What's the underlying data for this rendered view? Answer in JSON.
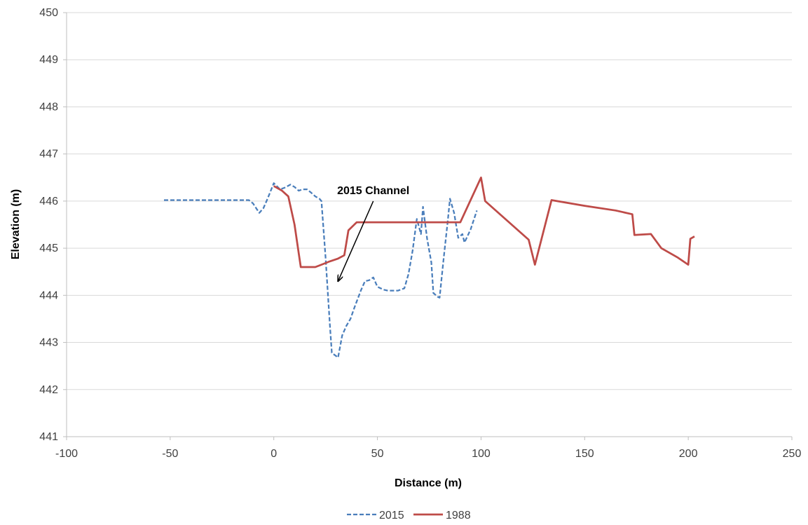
{
  "chart_data": {
    "type": "line",
    "title": "",
    "xlabel": "Distance (m)",
    "ylabel": "Elevation (m)",
    "xlim": [
      -100,
      250
    ],
    "ylim": [
      441,
      450
    ],
    "xticks": [
      -100,
      -50,
      0,
      50,
      100,
      150,
      200,
      250
    ],
    "yticks": [
      441,
      442,
      443,
      444,
      445,
      446,
      447,
      448,
      449,
      450
    ],
    "grid": "horizontal",
    "legend_position": "bottom",
    "annotations": [
      {
        "text": "2015 Channel",
        "arrow_from": [
          48,
          446.0
        ],
        "arrow_to": [
          31,
          444.3
        ]
      }
    ],
    "series": [
      {
        "name": "2015",
        "color": "#4a7ebb",
        "style": "dashed",
        "points": [
          [
            -53,
            446.02
          ],
          [
            -12,
            446.02
          ],
          [
            -10,
            445.95
          ],
          [
            -7,
            445.75
          ],
          [
            -5,
            445.85
          ],
          [
            -3,
            446.05
          ],
          [
            0,
            446.38
          ],
          [
            3,
            446.25
          ],
          [
            5,
            446.28
          ],
          [
            8,
            446.35
          ],
          [
            10,
            446.3
          ],
          [
            12,
            446.22
          ],
          [
            14,
            446.25
          ],
          [
            16,
            446.25
          ],
          [
            18,
            446.18
          ],
          [
            20,
            446.1
          ],
          [
            22,
            446.05
          ],
          [
            23,
            446.0
          ],
          [
            25,
            444.8
          ],
          [
            27,
            443.4
          ],
          [
            28,
            442.78
          ],
          [
            31,
            442.68
          ],
          [
            33,
            443.15
          ],
          [
            35,
            443.35
          ],
          [
            37,
            443.5
          ],
          [
            39,
            443.75
          ],
          [
            42,
            444.1
          ],
          [
            44,
            444.3
          ],
          [
            46,
            444.32
          ],
          [
            48,
            444.38
          ],
          [
            50,
            444.18
          ],
          [
            53,
            444.12
          ],
          [
            55,
            444.1
          ],
          [
            60,
            444.1
          ],
          [
            63,
            444.15
          ],
          [
            65,
            444.45
          ],
          [
            67,
            444.95
          ],
          [
            69,
            445.62
          ],
          [
            71,
            445.3
          ],
          [
            72,
            445.88
          ],
          [
            74,
            445.2
          ],
          [
            76,
            444.7
          ],
          [
            77,
            444.05
          ],
          [
            79,
            443.97
          ],
          [
            80,
            443.95
          ],
          [
            82,
            444.8
          ],
          [
            84,
            445.6
          ],
          [
            85,
            446.05
          ],
          [
            87,
            445.75
          ],
          [
            89,
            445.22
          ],
          [
            91,
            445.3
          ],
          [
            92,
            445.12
          ],
          [
            95,
            445.4
          ],
          [
            98,
            445.8
          ]
        ]
      },
      {
        "name": "1988",
        "color": "#be4b48",
        "style": "solid",
        "points": [
          [
            0,
            446.32
          ],
          [
            4,
            446.22
          ],
          [
            7,
            446.1
          ],
          [
            10,
            445.5
          ],
          [
            12,
            444.9
          ],
          [
            13,
            444.6
          ],
          [
            16,
            444.6
          ],
          [
            20,
            444.6
          ],
          [
            23,
            444.65
          ],
          [
            27,
            444.72
          ],
          [
            31,
            444.78
          ],
          [
            34,
            444.85
          ],
          [
            36,
            445.38
          ],
          [
            40,
            445.55
          ],
          [
            60,
            445.55
          ],
          [
            90,
            445.55
          ],
          [
            100,
            446.5
          ],
          [
            102,
            446.0
          ],
          [
            123,
            445.18
          ],
          [
            126,
            444.65
          ],
          [
            134,
            446.02
          ],
          [
            150,
            445.9
          ],
          [
            165,
            445.8
          ],
          [
            173,
            445.72
          ],
          [
            174,
            445.28
          ],
          [
            182,
            445.3
          ],
          [
            187,
            445.0
          ],
          [
            195,
            444.8
          ],
          [
            200,
            444.65
          ],
          [
            201,
            445.2
          ],
          [
            203,
            445.25
          ]
        ]
      }
    ]
  }
}
